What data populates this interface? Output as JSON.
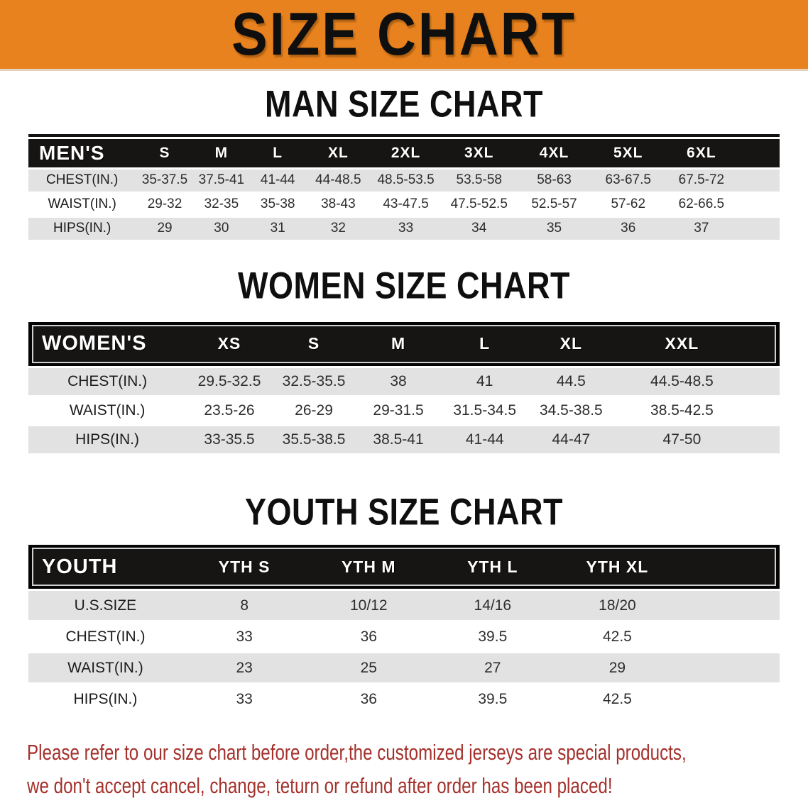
{
  "banner": {
    "title": "SIZE CHART"
  },
  "theme": {
    "banner_bg": "#e8821e",
    "band_bg": "#171513",
    "row_alt_bg": "#e2e2e2",
    "heading_color": "#0f0f0f",
    "notice_color": "#a5302b"
  },
  "sections": [
    {
      "id": "man",
      "heading": "MAN SIZE CHART",
      "table": {
        "header_label": "MEN'S",
        "columns": [
          "S",
          "M",
          "L",
          "XL",
          "2XL",
          "3XL",
          "4XL",
          "5XL",
          "6XL"
        ],
        "rows": [
          {
            "label": "CHEST(IN.)",
            "values": [
              "35-37.5",
              "37.5-41",
              "41-44",
              "44-48.5",
              "48.5-53.5",
              "53.5-58",
              "58-63",
              "63-67.5",
              "67.5-72"
            ]
          },
          {
            "label": "WAIST(IN.)",
            "values": [
              "29-32",
              "32-35",
              "35-38",
              "38-43",
              "43-47.5",
              "47.5-52.5",
              "52.5-57",
              "57-62",
              "62-66.5"
            ]
          },
          {
            "label": "HIPS(IN.)",
            "values": [
              "29",
              "30",
              "31",
              "32",
              "33",
              "34",
              "35",
              "36",
              "37"
            ]
          }
        ]
      }
    },
    {
      "id": "women",
      "heading": "WOMEN SIZE CHART",
      "table": {
        "header_label": "WOMEN'S",
        "columns": [
          "XS",
          "S",
          "M",
          "L",
          "XL",
          "XXL"
        ],
        "rows": [
          {
            "label": "CHEST(IN.)",
            "values": [
              "29.5-32.5",
              "32.5-35.5",
              "38",
              "41",
              "44.5",
              "44.5-48.5"
            ]
          },
          {
            "label": "WAIST(IN.)",
            "values": [
              "23.5-26",
              "26-29",
              "29-31.5",
              "31.5-34.5",
              "34.5-38.5",
              "38.5-42.5"
            ]
          },
          {
            "label": "HIPS(IN.)",
            "values": [
              "33-35.5",
              "35.5-38.5",
              "38.5-41",
              "41-44",
              "44-47",
              "47-50"
            ]
          }
        ]
      }
    },
    {
      "id": "youth",
      "heading": "YOUTH SIZE CHART",
      "table": {
        "header_label": "YOUTH",
        "columns": [
          "YTH S",
          "YTH M",
          "YTH L",
          "YTH XL"
        ],
        "rows": [
          {
            "label": "U.S.SIZE",
            "values": [
              "8",
              "10/12",
              "14/16",
              "18/20"
            ]
          },
          {
            "label": "CHEST(IN.)",
            "values": [
              "33",
              "36",
              "39.5",
              "42.5"
            ]
          },
          {
            "label": "WAIST(IN.)",
            "values": [
              "23",
              "25",
              "27",
              "29"
            ]
          },
          {
            "label": "HIPS(IN.)",
            "values": [
              "33",
              "36",
              "39.5",
              "42.5"
            ]
          }
        ]
      }
    }
  ],
  "footer": {
    "line1": "Please refer to our size chart before order,the customized jerseys are special products,",
    "line2": "we don't accept cancel, change, teturn or refund after order has been placed!"
  }
}
